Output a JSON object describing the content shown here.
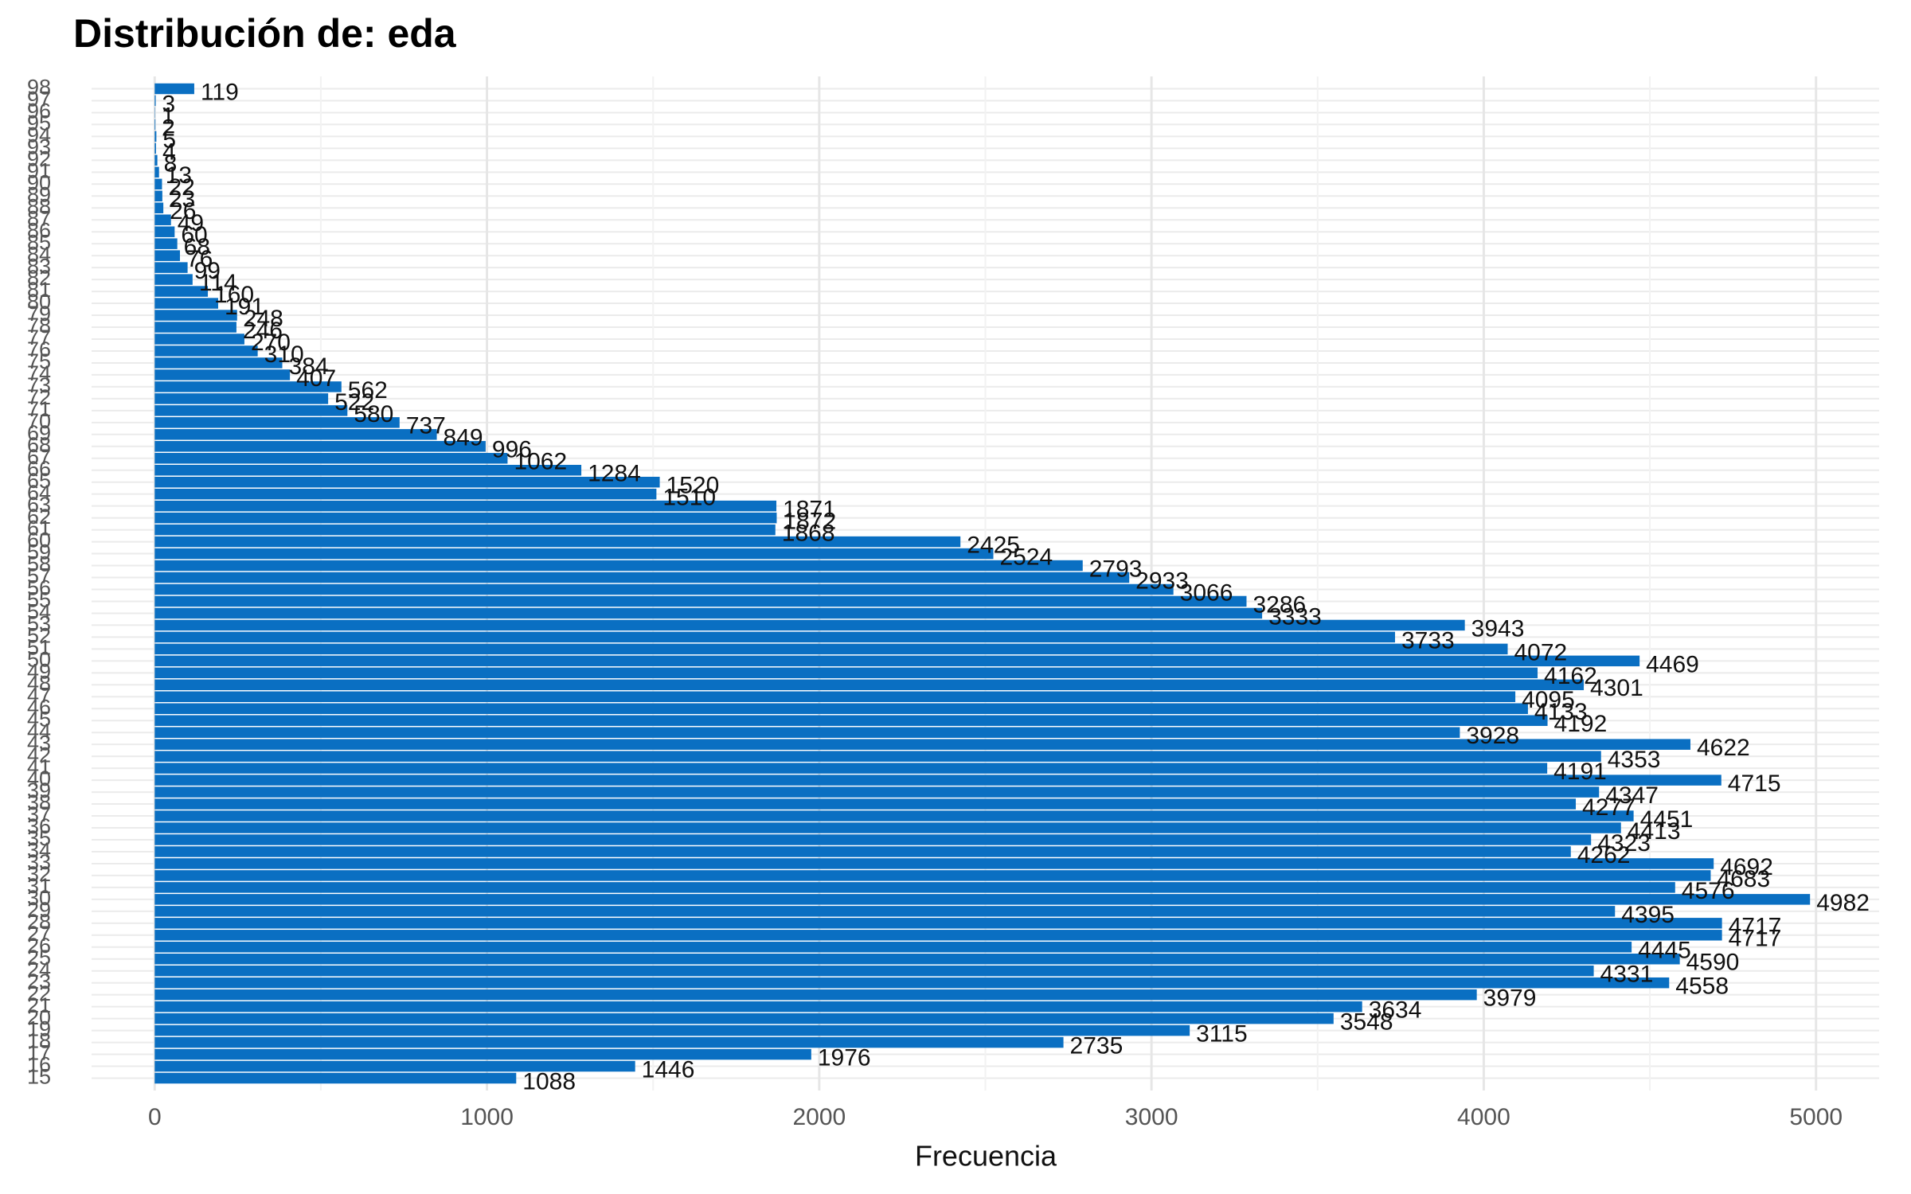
{
  "chart_data": {
    "type": "barh",
    "title": "Distribución de: eda",
    "xlabel": "Frecuencia",
    "categories": [
      "15",
      "16",
      "17",
      "18",
      "19",
      "20",
      "21",
      "22",
      "23",
      "24",
      "25",
      "26",
      "27",
      "28",
      "29",
      "30",
      "31",
      "32",
      "33",
      "34",
      "35",
      "36",
      "37",
      "38",
      "39",
      "40",
      "41",
      "42",
      "43",
      "44",
      "45",
      "46",
      "47",
      "48",
      "49",
      "50",
      "51",
      "52",
      "53",
      "54",
      "55",
      "56",
      "57",
      "58",
      "59",
      "60",
      "61",
      "62",
      "63",
      "64",
      "65",
      "66",
      "67",
      "68",
      "69",
      "70",
      "71",
      "72",
      "73",
      "74",
      "75",
      "76",
      "77",
      "78",
      "79",
      "80",
      "81",
      "82",
      "83",
      "84",
      "85",
      "86",
      "87",
      "88",
      "89",
      "90",
      "91",
      "92",
      "93",
      "94",
      "95",
      "96",
      "97",
      "98"
    ],
    "values": [
      1088,
      1446,
      1976,
      2735,
      3115,
      3548,
      3634,
      3979,
      4558,
      4331,
      4590,
      4445,
      4717,
      4717,
      4395,
      4982,
      4576,
      4683,
      4692,
      4262,
      4323,
      4413,
      4451,
      4277,
      4347,
      4715,
      4191,
      4353,
      4622,
      3928,
      4192,
      4133,
      4095,
      4301,
      4162,
      4469,
      4072,
      3733,
      3943,
      3333,
      3286,
      3066,
      2933,
      2793,
      2524,
      2425,
      1868,
      1872,
      1871,
      1510,
      1520,
      1284,
      1062,
      996,
      849,
      737,
      580,
      522,
      562,
      407,
      384,
      310,
      270,
      246,
      248,
      191,
      160,
      114,
      99,
      76,
      68,
      60,
      49,
      26,
      23,
      22,
      13,
      8,
      4,
      5,
      2,
      1,
      3,
      119
    ],
    "color": "#0a6fc2",
    "xlim": [
      -190,
      5190
    ],
    "xticks": [
      0,
      1000,
      2000,
      3000,
      4000,
      5000
    ],
    "xticks_minor": [
      500,
      1500,
      2500,
      3500,
      4500
    ],
    "grid": true
  }
}
